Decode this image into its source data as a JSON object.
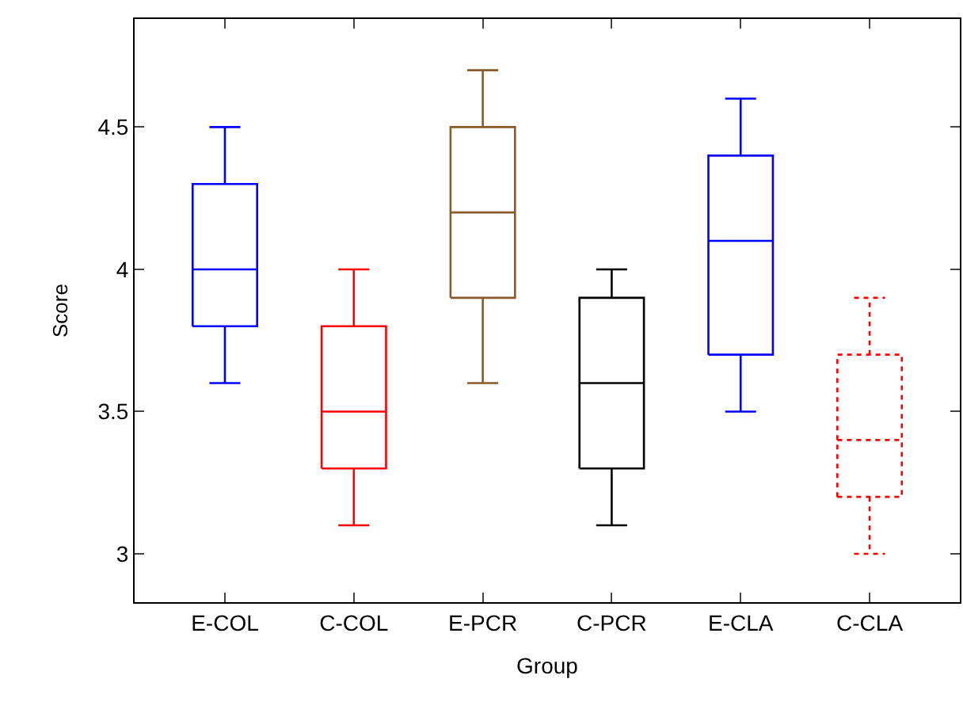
{
  "chart_data": {
    "type": "box",
    "xlabel": "Group",
    "ylabel": "Score",
    "categories": [
      "E-COL",
      "C-COL",
      "E-PCR",
      "C-PCR",
      "E-CLA",
      "C-CLA"
    ],
    "series": [
      {
        "color": "#0000ff",
        "boxes": [
          {
            "low": 3.6,
            "q1": 3.8,
            "median": 4.0,
            "q3": 4.3,
            "high": 4.5
          },
          null,
          null,
          null,
          {
            "low": 3.5,
            "q1": 3.7,
            "median": 4.1,
            "q3": 4.4,
            "high": 4.6
          },
          null
        ]
      },
      {
        "color": "#ff0000",
        "boxes": [
          null,
          {
            "low": 3.1,
            "q1": 3.3,
            "median": 3.5,
            "q3": 3.8,
            "high": 4.0
          },
          null,
          null,
          null,
          null
        ]
      },
      {
        "color": "#8b5a2b",
        "boxes": [
          null,
          null,
          {
            "low": 3.6,
            "q1": 3.9,
            "median": 4.2,
            "q3": 4.5,
            "high": 4.7
          },
          null,
          null,
          null
        ]
      },
      {
        "color": "#000000",
        "boxes": [
          null,
          null,
          null,
          {
            "low": 3.1,
            "q1": 3.3,
            "median": 3.6,
            "q3": 3.9,
            "high": 4.0
          },
          null,
          null
        ]
      },
      {
        "color": "#ff0000",
        "line_style": "dotted",
        "boxes": [
          null,
          null,
          null,
          null,
          null,
          {
            "low": 3.0,
            "q1": 3.2,
            "median": 3.4,
            "q3": 3.7,
            "high": 3.9
          }
        ]
      }
    ],
    "ylim": [
      2.83,
      4.88
    ],
    "yticks": [
      3,
      3.5,
      4,
      4.5
    ]
  }
}
